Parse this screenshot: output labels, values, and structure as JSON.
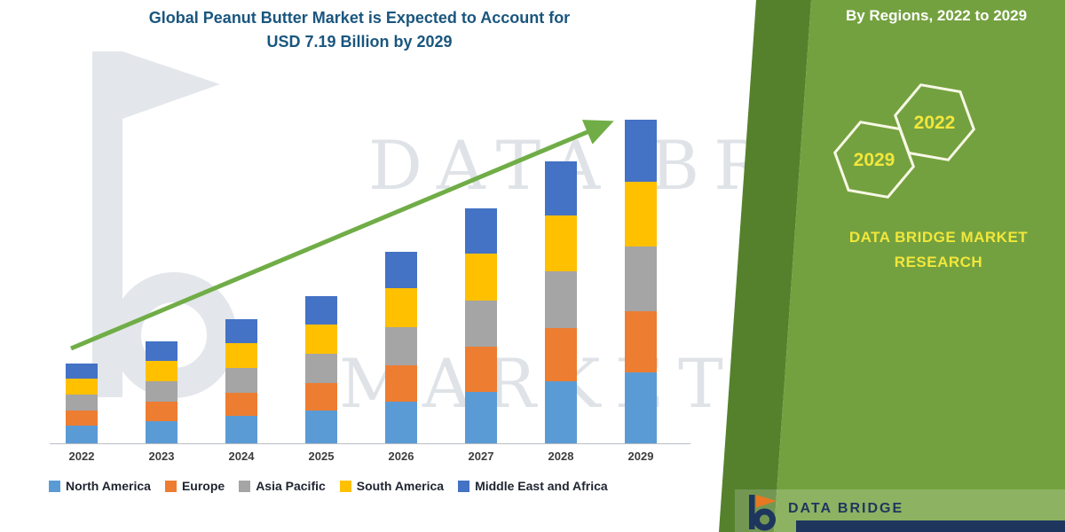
{
  "title": {
    "line1": "Global Peanut Butter Market is Expected to Account for",
    "line2": "USD 7.19 Billion by 2029"
  },
  "watermark": {
    "line1": "DATA BRIDGE",
    "line2": "MARKET RESEARCH"
  },
  "side_panel": {
    "heading": "By Regions, 2022 to 2029",
    "hexagons": [
      {
        "label": "2029"
      },
      {
        "label": "2022"
      }
    ],
    "brand_lines": [
      "DATA BRIDGE MARKET",
      "RESEARCH"
    ],
    "footer_brand": "DATA BRIDGE"
  },
  "colors": {
    "title_blue": "#1A567E",
    "panel_green": "#74A13F",
    "panel_dark_green": "#55812D",
    "arrow_green": "#70AD47",
    "brand_yellow": "#F2E73B",
    "footer_navy": "#1E355E",
    "logo_orange": "#E87722"
  },
  "chart_data": {
    "type": "bar",
    "stacked": true,
    "title": "Global Peanut Butter Market is Expected to Account for USD 7.19 Billion by 2029",
    "units": "USD Billion",
    "categories": [
      "2022",
      "2023",
      "2024",
      "2025",
      "2026",
      "2027",
      "2028",
      "2029"
    ],
    "series": [
      {
        "name": "North America",
        "color": "#5B9BD5",
        "values": [
          0.39,
          0.5,
          0.61,
          0.72,
          0.93,
          1.15,
          1.38,
          1.57
        ]
      },
      {
        "name": "Europe",
        "color": "#ED7D31",
        "values": [
          0.34,
          0.43,
          0.52,
          0.62,
          0.81,
          0.99,
          1.19,
          1.37
        ]
      },
      {
        "name": "Asia Pacific",
        "color": "#A5A5A5",
        "values": [
          0.35,
          0.45,
          0.55,
          0.65,
          0.85,
          1.04,
          1.25,
          1.44
        ]
      },
      {
        "name": "South America",
        "color": "#FFC000",
        "values": [
          0.35,
          0.45,
          0.55,
          0.65,
          0.85,
          1.04,
          1.25,
          1.44
        ]
      },
      {
        "name": "Middle East and Africa",
        "color": "#4472C4",
        "values": [
          0.34,
          0.43,
          0.52,
          0.62,
          0.81,
          0.99,
          1.19,
          1.37
        ]
      }
    ],
    "totals": [
      1.77,
      2.26,
      2.75,
      3.26,
      4.25,
      5.21,
      6.26,
      7.19
    ],
    "xlabel": "",
    "ylabel": "",
    "ylim": [
      0,
      7.5
    ],
    "grid": false,
    "legend_position": "bottom",
    "trend_arrow": true
  }
}
